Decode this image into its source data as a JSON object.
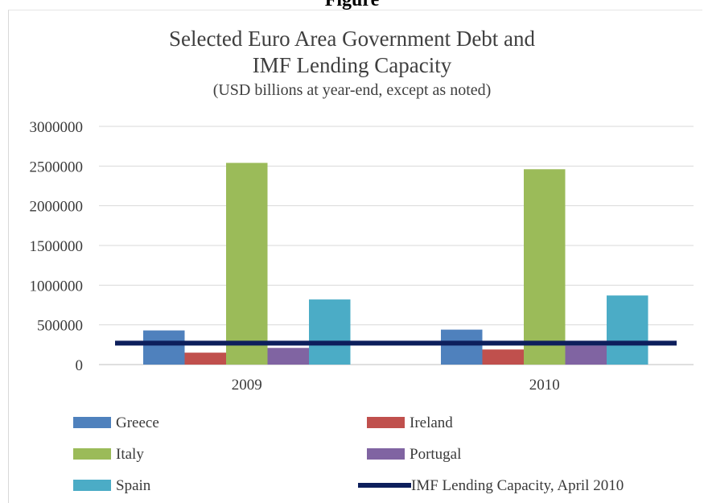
{
  "page_heading": "Figure",
  "chart_data": {
    "type": "bar",
    "title_line1": "Selected Euro Area Government Debt and",
    "title_line2": "IMF Lending Capacity",
    "subtitle": "(USD billions at year-end, except as noted)",
    "categories": [
      "2009",
      "2010"
    ],
    "ylim": [
      0,
      3000000
    ],
    "yticks": [
      "0",
      "500000",
      "1000000",
      "1500000",
      "2000000",
      "2500000",
      "3000000"
    ],
    "ytick_values": [
      0,
      500000,
      1000000,
      1500000,
      2000000,
      2500000,
      3000000
    ],
    "grid": true,
    "legend_position": "bottom",
    "series": [
      {
        "name": "Greece",
        "color": "#4f81bd",
        "values": [
          430000,
          440000
        ]
      },
      {
        "name": "Ireland",
        "color": "#c0504d",
        "values": [
          150000,
          190000
        ]
      },
      {
        "name": "Italy",
        "color": "#9bbb59",
        "values": [
          2540000,
          2460000
        ]
      },
      {
        "name": "Portugal",
        "color": "#8064a2",
        "values": [
          210000,
          240000
        ]
      },
      {
        "name": "Spain",
        "color": "#4bacc6",
        "values": [
          820000,
          870000
        ]
      }
    ],
    "reference_line": {
      "name": "IMF Lending Capacity, April 2010",
      "color": "#0d1f5c",
      "value": 270000
    }
  }
}
